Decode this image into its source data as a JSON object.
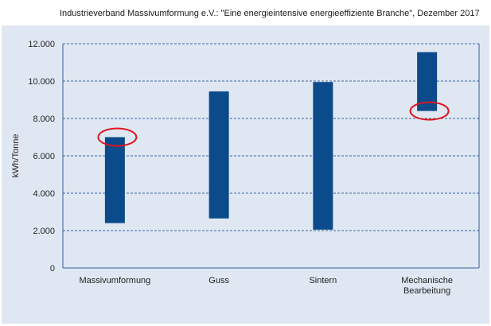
{
  "title": "Industrieverband Massivumformung e.V.: \"Eine energieintensive energieeffiziente Branche\", Dezember 2017",
  "colors": {
    "panel": "#dfe8f2",
    "bar": "#0b4a8b",
    "grid": "#3d5fa8",
    "highlight": "#e0141e"
  },
  "chart_data": {
    "type": "bar",
    "style": "floating-range",
    "categories": [
      "Massivumformung",
      "Guss",
      "Sintern",
      "Mechanische\nBearbeitung"
    ],
    "ranges": [
      {
        "low": 2400,
        "high": 7000
      },
      {
        "low": 2650,
        "high": 9450
      },
      {
        "low": 2050,
        "high": 9950
      },
      {
        "low": 8400,
        "high": 11550
      }
    ],
    "highlights": [
      {
        "category": "Massivumformung",
        "value": 7000
      },
      {
        "category": "Mechanische\nBearbeitung",
        "value": 8400
      }
    ],
    "ylabel": "kWh/Tonne",
    "ylim": [
      0,
      12000
    ],
    "yticks": [
      0,
      2000,
      4000,
      6000,
      8000,
      10000,
      12000
    ],
    "ytick_labels": [
      "0",
      "2.000",
      "4.000",
      "6.000",
      "8.000",
      "10.000",
      "12.000"
    ],
    "grid": "horizontal-dashed"
  }
}
